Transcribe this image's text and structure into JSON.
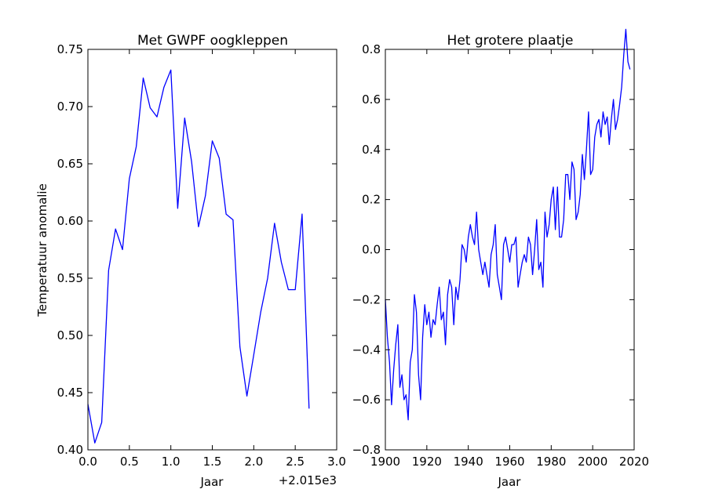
{
  "chart_data": [
    {
      "type": "line",
      "title": "Met GWPF oogkleppen",
      "xlabel": "Jaar",
      "ylabel": "Temperatuur anomalie",
      "x_offset_label": "+2.015e3",
      "xlim": [
        0.0,
        3.0
      ],
      "ylim": [
        0.4,
        0.75
      ],
      "xticks": [
        "0.0",
        "0.5",
        "1.0",
        "1.5",
        "2.0",
        "2.5",
        "3.0"
      ],
      "yticks": [
        "0.40",
        "0.45",
        "0.50",
        "0.55",
        "0.60",
        "0.65",
        "0.70",
        "0.75"
      ],
      "grid": false,
      "color": "#0000ff",
      "series": [
        {
          "x": [
            0.0,
            0.083,
            0.167,
            0.25,
            0.333,
            0.417,
            0.5,
            0.583,
            0.667,
            0.75,
            0.833,
            0.917,
            1.0,
            1.083,
            1.167,
            1.25,
            1.333,
            1.417,
            1.5,
            1.583,
            1.667,
            1.75,
            1.833,
            1.917,
            2.0,
            2.083,
            2.167,
            2.25,
            2.333,
            2.417,
            2.5,
            2.583,
            2.667
          ],
          "y": [
            0.44,
            0.406,
            0.424,
            0.557,
            0.593,
            0.575,
            0.637,
            0.665,
            0.725,
            0.699,
            0.691,
            0.717,
            0.732,
            0.611,
            0.69,
            0.652,
            0.595,
            0.622,
            0.67,
            0.655,
            0.606,
            0.601,
            0.49,
            0.447,
            0.483,
            0.52,
            0.55,
            0.598,
            0.564,
            0.54,
            0.54,
            0.606,
            0.436
          ]
        }
      ]
    },
    {
      "type": "line",
      "title": "Het grotere plaatje",
      "xlabel": "Jaar",
      "ylabel": "",
      "xlim": [
        1900,
        2020
      ],
      "ylim": [
        -0.8,
        0.8
      ],
      "xticks": [
        "1900",
        "1920",
        "1940",
        "1960",
        "1980",
        "2000",
        "2020"
      ],
      "yticks": [
        "−0.8",
        "−0.6",
        "−0.4",
        "−0.2",
        "0.0",
        "0.2",
        "0.4",
        "0.6",
        "0.8"
      ],
      "grid": false,
      "color": "#0000ff",
      "series": [
        {
          "x": [
            1900,
            1901,
            1902,
            1903,
            1904,
            1905,
            1906,
            1907,
            1908,
            1909,
            1910,
            1911,
            1912,
            1913,
            1914,
            1915,
            1916,
            1917,
            1918,
            1919,
            1920,
            1921,
            1922,
            1923,
            1924,
            1925,
            1926,
            1927,
            1928,
            1929,
            1930,
            1931,
            1932,
            1933,
            1934,
            1935,
            1936,
            1937,
            1938,
            1939,
            1940,
            1941,
            1942,
            1943,
            1944,
            1945,
            1946,
            1947,
            1948,
            1949,
            1950,
            1951,
            1952,
            1953,
            1954,
            1955,
            1956,
            1957,
            1958,
            1959,
            1960,
            1961,
            1962,
            1963,
            1964,
            1965,
            1966,
            1967,
            1968,
            1969,
            1970,
            1971,
            1972,
            1973,
            1974,
            1975,
            1976,
            1977,
            1978,
            1979,
            1980,
            1981,
            1982,
            1983,
            1984,
            1985,
            1986,
            1987,
            1988,
            1989,
            1990,
            1991,
            1992,
            1993,
            1994,
            1995,
            1996,
            1997,
            1998,
            1999,
            2000,
            2001,
            2002,
            2003,
            2004,
            2005,
            2006,
            2007,
            2008,
            2009,
            2010,
            2011,
            2012,
            2013,
            2014,
            2015,
            2016,
            2017,
            2018
          ],
          "y": [
            -0.2,
            -0.35,
            -0.45,
            -0.62,
            -0.48,
            -0.38,
            -0.3,
            -0.55,
            -0.5,
            -0.6,
            -0.58,
            -0.68,
            -0.45,
            -0.4,
            -0.18,
            -0.25,
            -0.5,
            -0.6,
            -0.35,
            -0.22,
            -0.3,
            -0.25,
            -0.35,
            -0.28,
            -0.3,
            -0.22,
            -0.15,
            -0.28,
            -0.25,
            -0.38,
            -0.18,
            -0.12,
            -0.15,
            -0.3,
            -0.15,
            -0.2,
            -0.12,
            0.02,
            0.0,
            -0.05,
            0.05,
            0.1,
            0.05,
            0.02,
            0.15,
            0.0,
            -0.05,
            -0.1,
            -0.05,
            -0.1,
            -0.15,
            -0.02,
            0.02,
            0.1,
            -0.1,
            -0.15,
            -0.2,
            0.02,
            0.05,
            0.0,
            -0.05,
            0.02,
            0.02,
            0.05,
            -0.15,
            -0.1,
            -0.05,
            -0.02,
            -0.05,
            0.05,
            0.02,
            -0.1,
            0.0,
            0.12,
            -0.08,
            -0.05,
            -0.15,
            0.15,
            0.05,
            0.1,
            0.2,
            0.25,
            0.08,
            0.25,
            0.05,
            0.05,
            0.12,
            0.3,
            0.3,
            0.2,
            0.35,
            0.32,
            0.12,
            0.15,
            0.22,
            0.38,
            0.28,
            0.4,
            0.55,
            0.3,
            0.32,
            0.45,
            0.5,
            0.52,
            0.45,
            0.55,
            0.5,
            0.53,
            0.42,
            0.52,
            0.6,
            0.48,
            0.52,
            0.58,
            0.65,
            0.78,
            0.88,
            0.75,
            0.72
          ]
        }
      ]
    }
  ]
}
